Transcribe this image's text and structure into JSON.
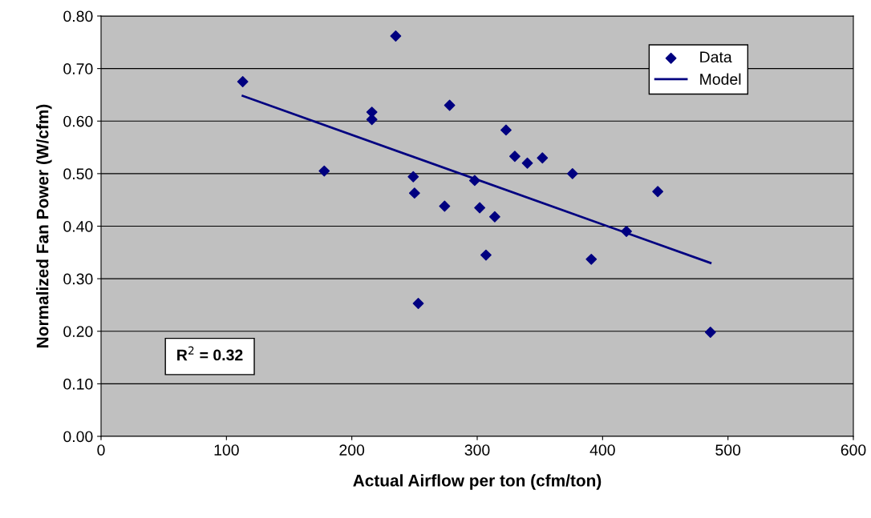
{
  "chart_data": {
    "type": "scatter",
    "xlabel": "Actual Airflow per ton (cfm/ton)",
    "ylabel": "Normalized Fan Power (W/cfm)",
    "xlim": [
      0,
      600
    ],
    "xticks": [
      0,
      100,
      200,
      300,
      400,
      500,
      600
    ],
    "ylim": [
      0,
      0.8
    ],
    "yticks": [
      {
        "value": 0,
        "label": "0.00"
      },
      {
        "value": 0.1,
        "label": "0.10"
      },
      {
        "value": 0.2,
        "label": "0.20"
      },
      {
        "value": 0.3,
        "label": "0.30"
      },
      {
        "value": 0.4,
        "label": "0.40"
      },
      {
        "value": 0.5,
        "label": "0.50"
      },
      {
        "value": 0.6,
        "label": "0.60"
      },
      {
        "value": 0.7,
        "label": "0.70"
      },
      {
        "value": 0.8,
        "label": "0.80"
      }
    ],
    "grid": "y",
    "legend": "top right",
    "marker": "diamond",
    "series": [
      {
        "name": "Data",
        "color": "#000080",
        "x": [
          113,
          235,
          178,
          216,
          216,
          278,
          249,
          250,
          274,
          253,
          298,
          302,
          307,
          314,
          323,
          330,
          340,
          352,
          376,
          391,
          419,
          444,
          486
        ],
        "values": [
          0.675,
          0.762,
          0.505,
          0.617,
          0.603,
          0.63,
          0.494,
          0.463,
          0.438,
          0.253,
          0.487,
          0.435,
          0.345,
          0.418,
          0.583,
          0.533,
          0.52,
          0.53,
          0.5,
          0.337,
          0.39,
          0.466,
          0.198
        ]
      },
      {
        "name": "Model",
        "type": "line",
        "marker": "none",
        "color": "#000080",
        "x": [
          113,
          486
        ],
        "values": [
          0.648,
          0.33
        ]
      }
    ],
    "annotations": [
      "R$^{2}$ = 0.32"
    ]
  }
}
